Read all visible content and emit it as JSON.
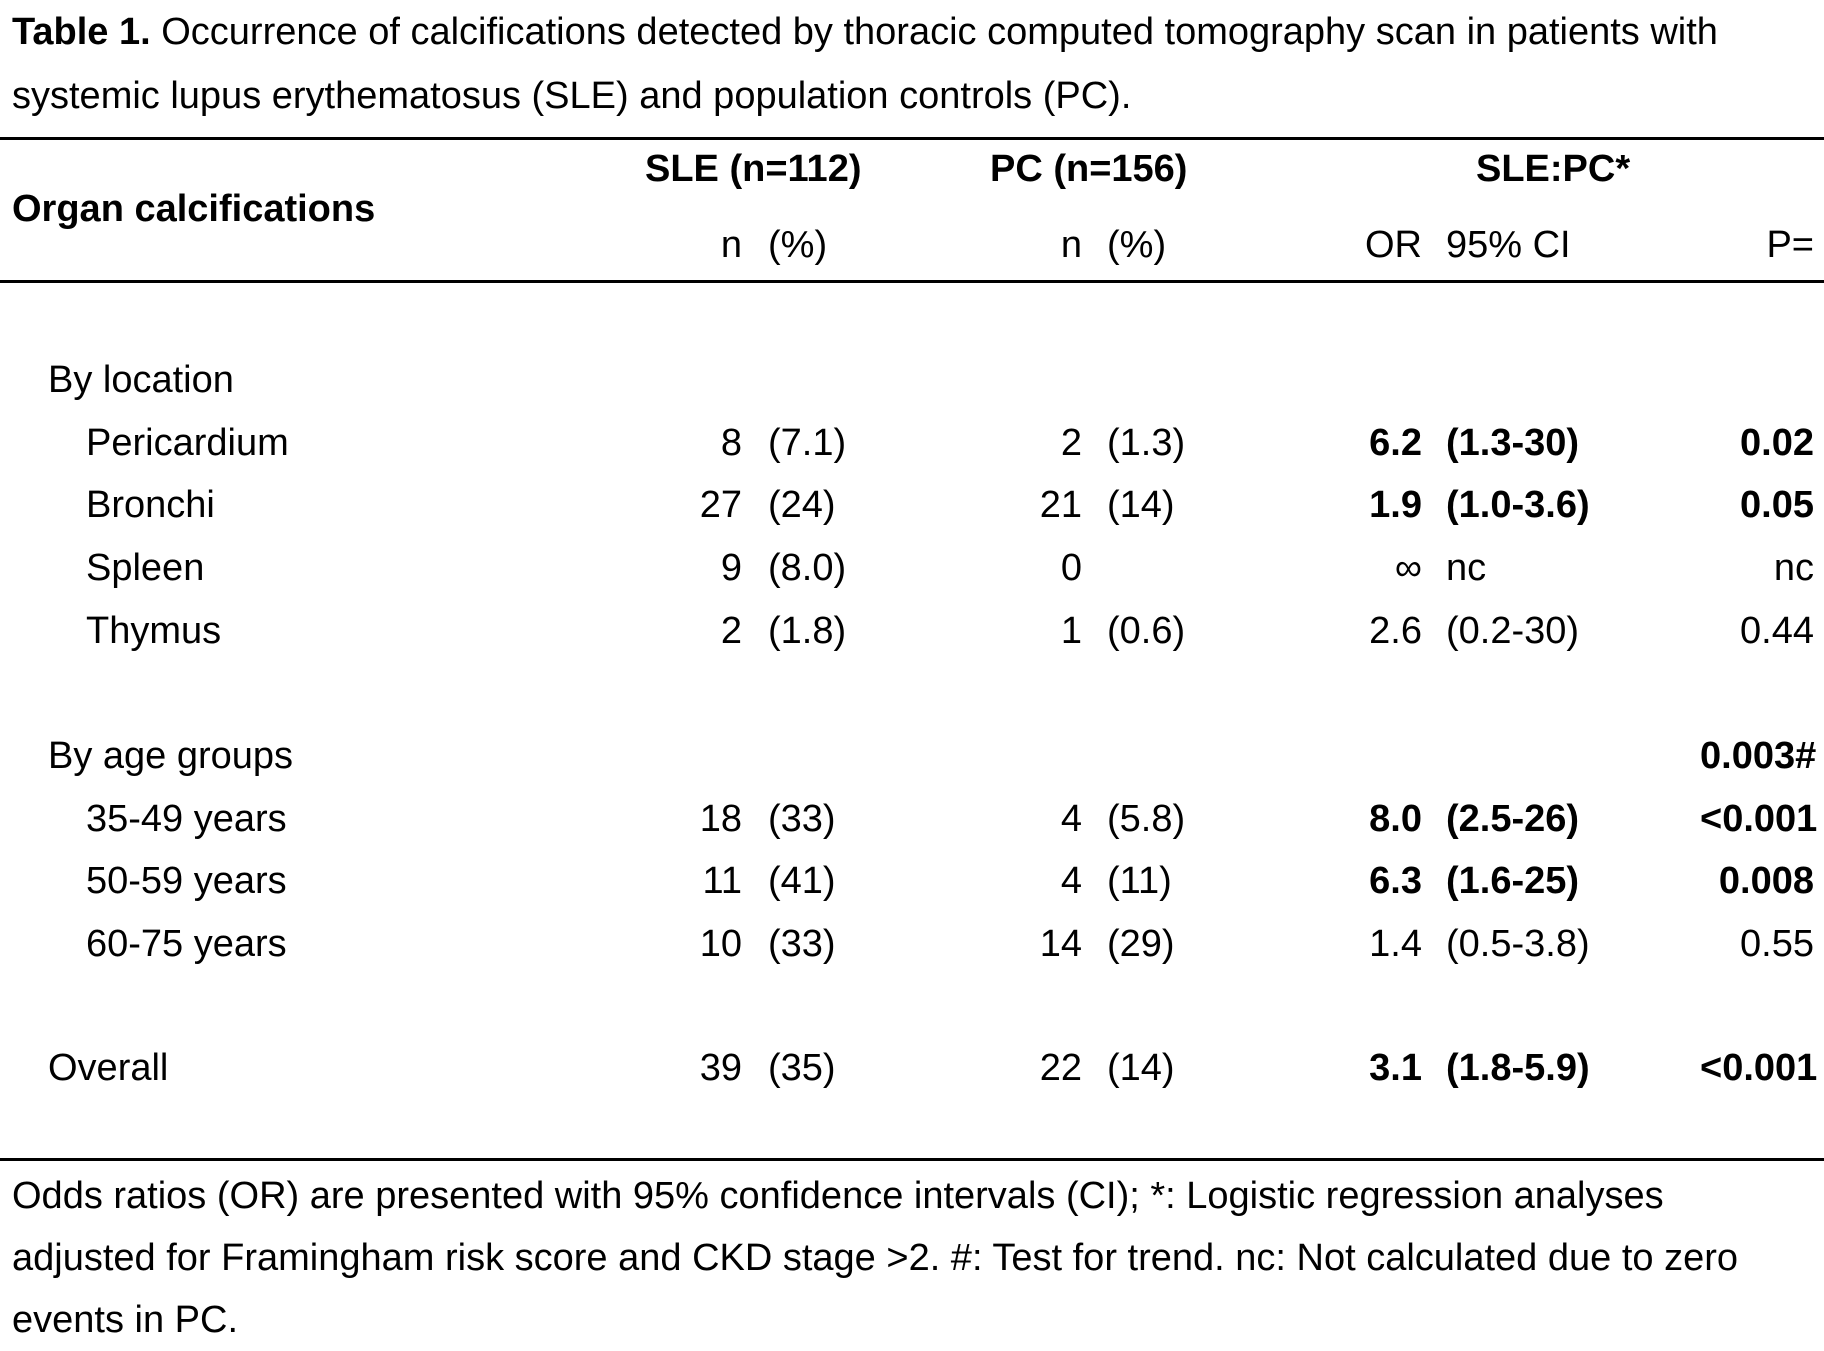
{
  "caption": {
    "label": "Table 1.",
    "text": " Occurrence of calcifications detected by thoracic computed tomography scan in patients with systemic lupus erythematosus (SLE) and population controls (PC)."
  },
  "header": {
    "row_label": "Organ calcifications",
    "groups": [
      "SLE (n=112)",
      "PC (n=156)",
      "SLE:PC*"
    ],
    "subheaders": {
      "sle_n": "n",
      "sle_pct": "(%)",
      "pc_n": "n",
      "pc_pct": "(%)",
      "or": "OR",
      "ci": "95% CI",
      "p": "P="
    }
  },
  "sections": [
    {
      "title": "By location",
      "title_p": "",
      "rows": [
        {
          "label": "Pericardium",
          "sle_n": "8",
          "sle_pct": "(7.1)",
          "pc_n": "2",
          "pc_pct": "(1.3)",
          "or": "6.2",
          "ci": "(1.3-30)",
          "p": "0.02",
          "bold": true
        },
        {
          "label": "Bronchi",
          "sle_n": "27",
          "sle_pct": "(24)",
          "pc_n": "21",
          "pc_pct": "(14)",
          "or": "1.9",
          "ci": "(1.0-3.6)",
          "p": "0.05",
          "bold": true
        },
        {
          "label": "Spleen",
          "sle_n": "9",
          "sle_pct": "(8.0)",
          "pc_n": "0",
          "pc_pct": "",
          "or": "∞",
          "ci": "nc",
          "p": "nc",
          "bold": false
        },
        {
          "label": "Thymus",
          "sle_n": "2",
          "sle_pct": "(1.8)",
          "pc_n": "1",
          "pc_pct": "(0.6)",
          "or": "2.6",
          "ci": "(0.2-30)",
          "p": "0.44",
          "bold": false
        }
      ]
    },
    {
      "title": "By age groups",
      "title_p": "0.003#",
      "rows": [
        {
          "label": "35-49 years",
          "sle_n": "18",
          "sle_pct": "(33)",
          "pc_n": "4",
          "pc_pct": "(5.8)",
          "or": "8.0",
          "ci": "(2.5-26)",
          "p": "<0.001",
          "bold": true
        },
        {
          "label": "50-59 years",
          "sle_n": "11",
          "sle_pct": "(41)",
          "pc_n": "4",
          "pc_pct": "(11)",
          "or": "6.3",
          "ci": "(1.6-25)",
          "p": "0.008",
          "bold": true
        },
        {
          "label": "60-75 years",
          "sle_n": "10",
          "sle_pct": "(33)",
          "pc_n": "14",
          "pc_pct": "(29)",
          "or": "1.4",
          "ci": "(0.5-3.8)",
          "p": "0.55",
          "bold": false
        }
      ]
    }
  ],
  "overall": {
    "label": "Overall",
    "sle_n": "39",
    "sle_pct": "(35)",
    "pc_n": "22",
    "pc_pct": "(14)",
    "or": "3.1",
    "ci": "(1.8-5.9)",
    "p": "<0.001",
    "bold": true
  },
  "footnote": "Odds ratios (OR) are presented with 95% confidence intervals (CI); *: Logistic regression analyses adjusted for Framingham risk score and CKD stage >2. #: Test for trend. nc: Not calculated due to zero events in PC."
}
